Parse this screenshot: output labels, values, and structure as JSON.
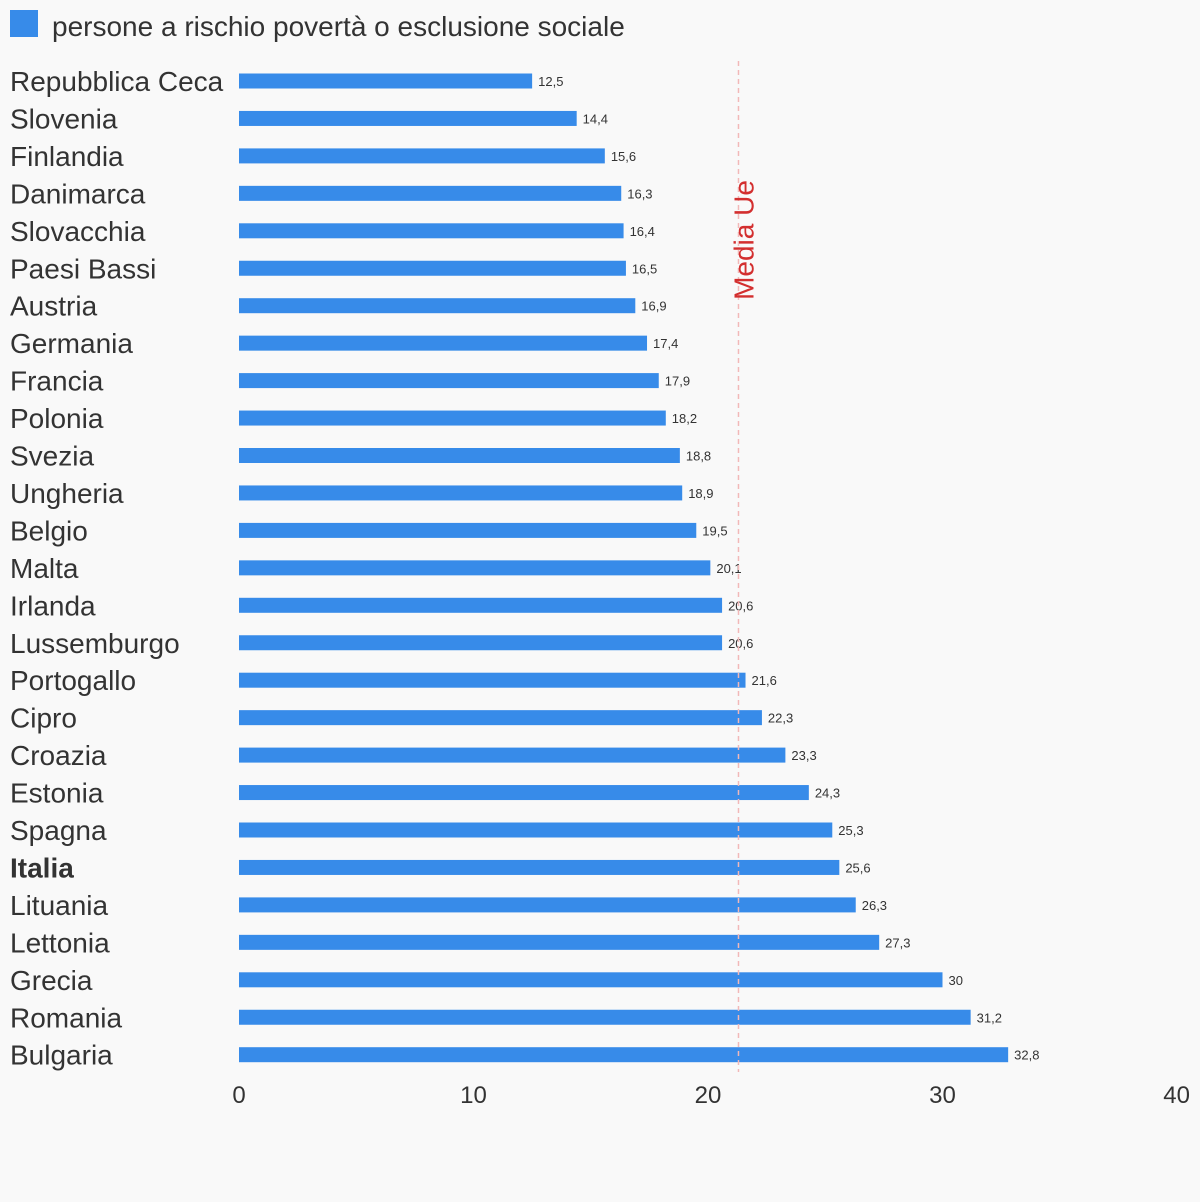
{
  "chart_data": {
    "type": "bar",
    "orientation": "horizontal",
    "categories": [
      "Repubblica Ceca",
      "Slovenia",
      "Finlandia",
      "Danimarca",
      "Slovacchia",
      "Paesi Bassi",
      "Austria",
      "Germania",
      "Francia",
      "Polonia",
      "Svezia",
      "Ungheria",
      "Belgio",
      "Malta",
      "Irlanda",
      "Lussemburgo",
      "Portogallo",
      "Cipro",
      "Croazia",
      "Estonia",
      "Spagna",
      "Italia",
      "Lituania",
      "Lettonia",
      "Grecia",
      "Romania",
      "Bulgaria"
    ],
    "highlight": "Italia",
    "series": [
      {
        "name": "persone a rischio povertà o esclusione sociale",
        "color": "#378be9",
        "values": [
          12.5,
          14.4,
          15.6,
          16.3,
          16.4,
          16.5,
          16.9,
          17.4,
          17.9,
          18.2,
          18.8,
          18.9,
          19.5,
          20.1,
          20.6,
          20.6,
          21.6,
          22.3,
          23.3,
          24.3,
          25.3,
          25.6,
          26.3,
          27.3,
          30,
          31.2,
          32.8
        ],
        "value_labels": [
          "12,5",
          "14,4",
          "15,6",
          "16,3",
          "16,4",
          "16,5",
          "16,9",
          "17,4",
          "17,9",
          "18,2",
          "18,8",
          "18,9",
          "19,5",
          "20,1",
          "20,6",
          "20,6",
          "21,6",
          "22,3",
          "23,3",
          "24,3",
          "25,3",
          "25,6",
          "26,3",
          "27,3",
          "30",
          "31,2",
          "32,8"
        ]
      }
    ],
    "xlim": [
      0,
      40
    ],
    "xticks": [
      0,
      10,
      20,
      30,
      40
    ],
    "reference_line": {
      "label": "Media Ue",
      "value": 21.3,
      "color": "#d32f2f"
    },
    "legend_position": "top-left",
    "grid": false
  }
}
